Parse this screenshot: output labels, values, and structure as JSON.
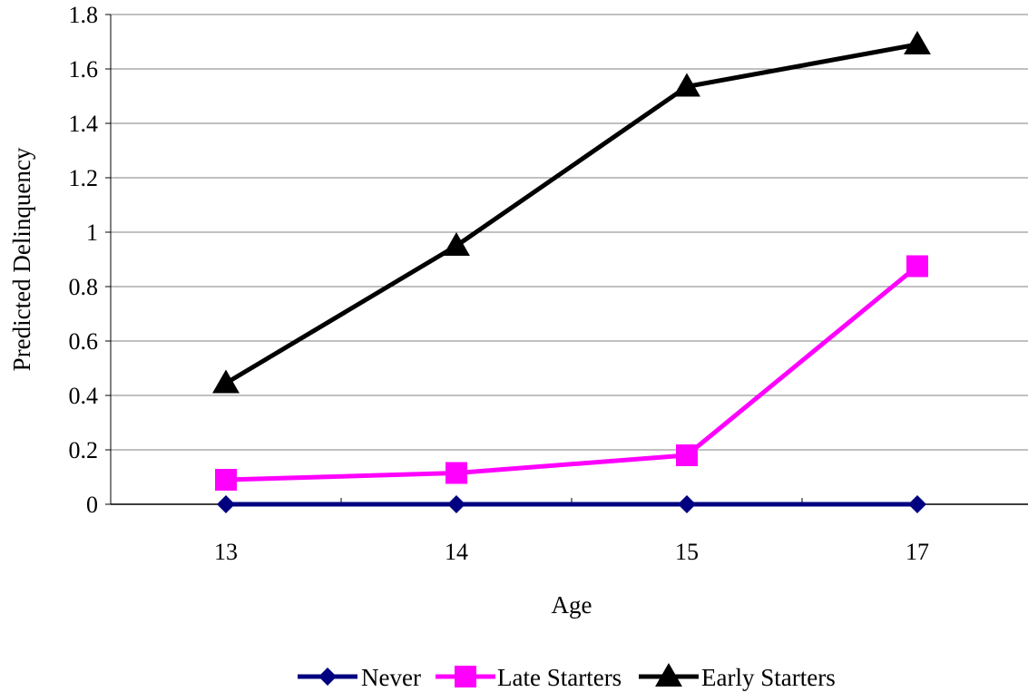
{
  "chart_data": {
    "type": "line",
    "title": "",
    "xlabel": "Age",
    "ylabel": "Predicted Delinquency",
    "categories": [
      "13",
      "14",
      "15",
      "17"
    ],
    "ylim": [
      0,
      1.8
    ],
    "yticks": [
      "0",
      "0.2",
      "0.4",
      "0.6",
      "0.8",
      "1",
      "1.2",
      "1.4",
      "1.6",
      "1.8"
    ],
    "grid": "horizontal",
    "legend_position": "bottom",
    "series": [
      {
        "name": "Never",
        "values": [
          0,
          0,
          0,
          0
        ],
        "color": "#000080",
        "marker": "diamond"
      },
      {
        "name": "Late Starters",
        "values": [
          0.09,
          0.115,
          0.18,
          0.875
        ],
        "color": "#ff00ff",
        "marker": "square"
      },
      {
        "name": "Early Starters",
        "values": [
          0.445,
          0.95,
          1.535,
          1.69
        ],
        "color": "#000000",
        "marker": "triangle"
      }
    ]
  }
}
